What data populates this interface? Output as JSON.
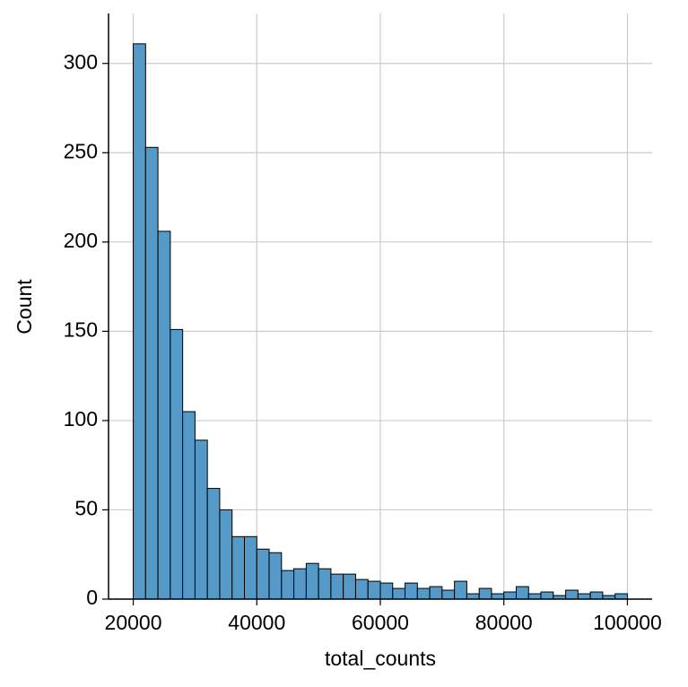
{
  "chart_data": {
    "type": "histogram",
    "x_label": "total_counts",
    "y_label": "Count",
    "bins": [
      20000,
      22000,
      24000,
      26000,
      28000,
      30000,
      32000,
      34000,
      36000,
      38000,
      40000,
      42000,
      44000,
      46000,
      48000,
      50000,
      52000,
      54000,
      56000,
      58000,
      60000,
      62000,
      64000,
      66000,
      68000,
      70000,
      72000,
      74000,
      76000,
      78000,
      80000,
      82000,
      84000,
      86000,
      88000,
      90000,
      92000,
      94000,
      96000,
      98000,
      100000
    ],
    "values": [
      311,
      253,
      206,
      151,
      105,
      89,
      62,
      50,
      35,
      35,
      28,
      26,
      16,
      17,
      20,
      17,
      14,
      14,
      11,
      10,
      9,
      6,
      9,
      6,
      7,
      5,
      10,
      3,
      6,
      3,
      4,
      7,
      3,
      4,
      2,
      5,
      3,
      4,
      2,
      3
    ],
    "color": "#5499c7",
    "edge_color": "#000000",
    "xlim": [
      16000,
      104000
    ],
    "ylim": [
      0,
      328
    ],
    "xticks": [
      20000,
      40000,
      60000,
      80000,
      100000
    ],
    "yticks": [
      0,
      50,
      100,
      150,
      200,
      250,
      300
    ],
    "grid": true
  }
}
